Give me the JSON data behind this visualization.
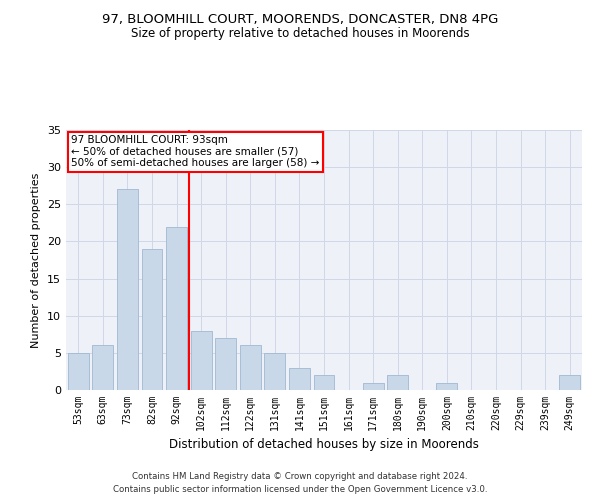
{
  "title1": "97, BLOOMHILL COURT, MOORENDS, DONCASTER, DN8 4PG",
  "title2": "Size of property relative to detached houses in Moorends",
  "xlabel": "Distribution of detached houses by size in Moorends",
  "ylabel": "Number of detached properties",
  "categories": [
    "53sqm",
    "63sqm",
    "73sqm",
    "82sqm",
    "92sqm",
    "102sqm",
    "112sqm",
    "122sqm",
    "131sqm",
    "141sqm",
    "151sqm",
    "161sqm",
    "171sqm",
    "180sqm",
    "190sqm",
    "200sqm",
    "210sqm",
    "220sqm",
    "229sqm",
    "239sqm",
    "249sqm"
  ],
  "values": [
    5,
    6,
    27,
    19,
    22,
    8,
    7,
    6,
    5,
    3,
    2,
    0,
    1,
    2,
    0,
    1,
    0,
    0,
    0,
    0,
    2
  ],
  "bar_color": "#c8d8e8",
  "bar_edge_color": "#a0b8d0",
  "grid_color": "#d0d8e8",
  "vline_x": 4.5,
  "vline_color": "red",
  "annotation_text": "97 BLOOMHILL COURT: 93sqm\n← 50% of detached houses are smaller (57)\n50% of semi-detached houses are larger (58) →",
  "annotation_box_color": "white",
  "annotation_box_edge_color": "red",
  "footnote1": "Contains HM Land Registry data © Crown copyright and database right 2024.",
  "footnote2": "Contains public sector information licensed under the Open Government Licence v3.0.",
  "ylim": [
    0,
    35
  ],
  "yticks": [
    0,
    5,
    10,
    15,
    20,
    25,
    30,
    35
  ],
  "bg_color": "#eef2f8",
  "title_fontsize": 9.5,
  "subtitle_fontsize": 8.5,
  "footnote_fontsize": 6.2
}
